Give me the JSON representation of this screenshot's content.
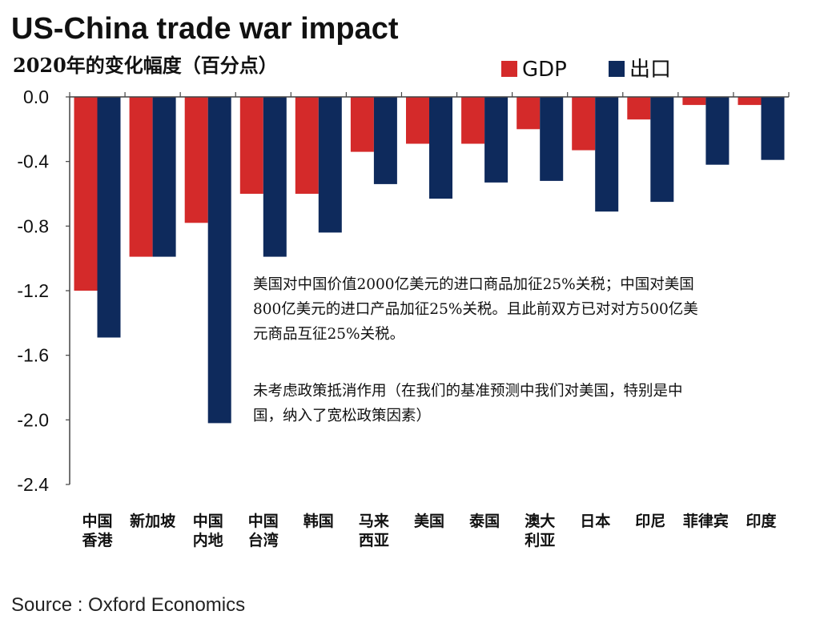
{
  "chart_data": {
    "type": "bar",
    "title": "US-China trade war impact",
    "subtitle": "2020年的变化幅度（百分点）",
    "categories": [
      [
        "中国",
        "香港"
      ],
      [
        "新加坡"
      ],
      [
        "中国",
        "内地"
      ],
      [
        "中国",
        "台湾"
      ],
      [
        "韩国"
      ],
      [
        "马来",
        "西亚"
      ],
      [
        "美国"
      ],
      [
        "泰国"
      ],
      [
        "澳大",
        "利亚"
      ],
      [
        "日本"
      ],
      [
        "印尼"
      ],
      [
        "菲律宾"
      ],
      [
        "印度"
      ]
    ],
    "series": [
      {
        "name": "GDP",
        "color": "#d42a2a",
        "values": [
          -1.2,
          -0.99,
          -0.78,
          -0.6,
          -0.6,
          -0.34,
          -0.29,
          -0.29,
          -0.2,
          -0.33,
          -0.14,
          -0.05,
          -0.05
        ]
      },
      {
        "name": "出口",
        "color": "#0e2a5c",
        "values": [
          -1.49,
          -0.99,
          -2.02,
          -0.99,
          -0.84,
          -0.54,
          -0.63,
          -0.53,
          -0.52,
          -0.71,
          -0.65,
          -0.42,
          -0.39
        ]
      }
    ],
    "ylim": [
      -2.4,
      0.0
    ],
    "yticks": [
      {
        "value": 0.0,
        "label": "0.0"
      },
      {
        "value": -0.4,
        "label": "-0.4"
      },
      {
        "value": -0.8,
        "label": "-0.8"
      },
      {
        "value": -1.2,
        "label": "-1.2"
      },
      {
        "value": -1.6,
        "label": "-1.6"
      },
      {
        "value": -2.0,
        "label": "-2.0"
      },
      {
        "value": -2.4,
        "label": "-2.4"
      }
    ],
    "grid": false,
    "legend_position": "top-right",
    "annotations": [
      [
        "美国对中国价值2000亿美元的进口商品加征25%关税；中国对美国",
        "800亿美元的进口产品加征25%关税。且此前双方已对对方500亿美",
        "元商品互征25%关税。"
      ],
      [
        "未考虑政策抵消作用（在我们的基准预测中我们对美国，特别是中",
        "国，纳入了宽松政策因素）"
      ]
    ],
    "source": "Source : Oxford Economics"
  }
}
